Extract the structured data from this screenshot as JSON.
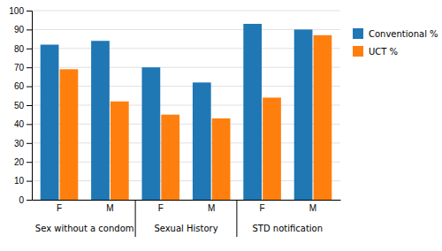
{
  "chart_data": {
    "type": "bar",
    "categories": [
      "F",
      "M",
      "F",
      "M",
      "F",
      "M"
    ],
    "groups": [
      "Sex without a condom",
      "Sexual History",
      "STD notification"
    ],
    "series": [
      {
        "name": "Conventional %",
        "values": [
          82,
          84,
          70,
          62,
          93,
          90
        ]
      },
      {
        "name": "UCT %",
        "values": [
          69,
          52,
          45,
          43,
          54,
          87
        ]
      }
    ],
    "ylim": [
      0,
      100
    ],
    "yticks": [
      0,
      10,
      20,
      30,
      40,
      50,
      60,
      70,
      80,
      90,
      100
    ],
    "grid": true,
    "legend": "right"
  }
}
